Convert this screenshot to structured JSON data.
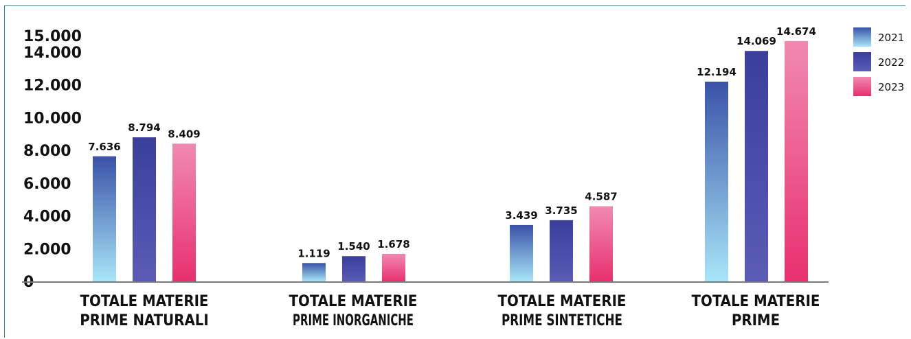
{
  "chart_data": {
    "type": "bar",
    "title": "",
    "xlabel": "",
    "ylabel": "",
    "ylim": [
      0,
      15000
    ],
    "yticks": [
      0,
      2000,
      4000,
      6000,
      8000,
      10000,
      12000,
      14000,
      15000
    ],
    "ytick_labels": [
      "0",
      "2.000",
      "4.000",
      "6.000",
      "8.000",
      "10.000",
      "12.000",
      "14.000",
      "15.000"
    ],
    "categories": [
      [
        "TOTALE MATERIE",
        "PRIME NATURALI"
      ],
      [
        "TOTALE MATERIE",
        "PRIME INORGANICHE"
      ],
      [
        "TOTALE MATERIE",
        "PRIME SINTETICHE"
      ],
      [
        "TOTALE MATERIE",
        "PRIME"
      ]
    ],
    "series": [
      {
        "name": "2021",
        "values": [
          7636,
          1119,
          3439,
          12194
        ],
        "labels": [
          "7.636",
          "1.119",
          "3.439",
          "12.194"
        ],
        "color_top": "#3a52a8",
        "color_bottom": "#a8e6f7"
      },
      {
        "name": "2022",
        "values": [
          8794,
          1540,
          3735,
          14069
        ],
        "labels": [
          "8.794",
          "1.540",
          "3.735",
          "14.069"
        ],
        "color_top": "#3a3f9c",
        "color_bottom": "#5a5cb5"
      },
      {
        "name": "2023",
        "values": [
          8409,
          1678,
          4587,
          14674
        ],
        "labels": [
          "8.409",
          "1.678",
          "4.587",
          "14.674"
        ],
        "color_top": "#f08ab0",
        "color_bottom": "#e8306f"
      }
    ],
    "grid": false,
    "legend_position": "top-right"
  }
}
